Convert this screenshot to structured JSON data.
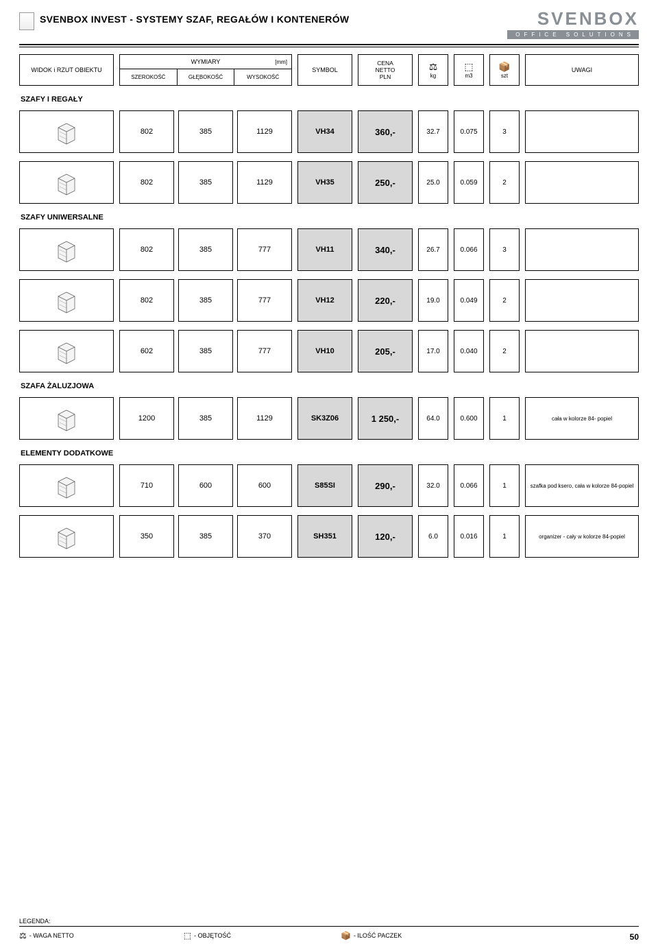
{
  "header": {
    "page_title": "SVENBOX INVEST - SYSTEMY SZAF, REGAŁÓW I KONTENERÓW",
    "brand_main": "SVENBOX",
    "brand_sub": "OFFICE SOLUTIONS"
  },
  "columns": {
    "view": "WIDOK i RZUT OBIEKTU",
    "dims_label": "WYMIARY",
    "dims_unit": "[mm]",
    "szer": "SZEROKOŚĆ",
    "gleb": "GŁĘBOKOŚĆ",
    "wys": "WYSOKOŚĆ",
    "symbol": "SYMBOL",
    "price": "CENA\nNETTO\nPLN",
    "kg": "kg",
    "m3": "m3",
    "szt": "szt",
    "remarks": "UWAGI",
    "icon_weight": "⚖",
    "icon_volume": "⬚",
    "icon_pack": "📦"
  },
  "sections": [
    {
      "label": "SZAFY I REGAŁY",
      "rows": [
        {
          "w": "802",
          "d": "385",
          "h": "1129",
          "symbol": "VH34",
          "price": "360,-",
          "kg": "32.7",
          "m3": "0.075",
          "szt": "3",
          "note": ""
        },
        {
          "w": "802",
          "d": "385",
          "h": "1129",
          "symbol": "VH35",
          "price": "250,-",
          "kg": "25.0",
          "m3": "0.059",
          "szt": "2",
          "note": ""
        }
      ]
    },
    {
      "label": "SZAFY UNIWERSALNE",
      "rows": [
        {
          "w": "802",
          "d": "385",
          "h": "777",
          "symbol": "VH11",
          "price": "340,-",
          "kg": "26.7",
          "m3": "0.066",
          "szt": "3",
          "note": ""
        },
        {
          "w": "802",
          "d": "385",
          "h": "777",
          "symbol": "VH12",
          "price": "220,-",
          "kg": "19.0",
          "m3": "0.049",
          "szt": "2",
          "note": ""
        },
        {
          "w": "602",
          "d": "385",
          "h": "777",
          "symbol": "VH10",
          "price": "205,-",
          "kg": "17.0",
          "m3": "0.040",
          "szt": "2",
          "note": ""
        }
      ]
    },
    {
      "label": "SZAFA ŻALUZJOWA",
      "rows": [
        {
          "w": "1200",
          "d": "385",
          "h": "1129",
          "symbol": "SK3Z06",
          "price": "1 250,-",
          "kg": "64.0",
          "m3": "0.600",
          "szt": "1",
          "note": "cała w kolorze 84- popiel"
        }
      ]
    },
    {
      "label": "ELEMENTY DODATKOWE",
      "rows": [
        {
          "w": "710",
          "d": "600",
          "h": "600",
          "symbol": "S85SI",
          "price": "290,-",
          "kg": "32.0",
          "m3": "0.066",
          "szt": "1",
          "note": "szafka pod ksero, cała w kolorze 84-popiel"
        },
        {
          "w": "350",
          "d": "385",
          "h": "370",
          "symbol": "SH351",
          "price": "120,-",
          "kg": "6.0",
          "m3": "0.016",
          "szt": "1",
          "note": "organizer - cały w kolorze 84-popiel"
        }
      ]
    }
  ],
  "legend": {
    "title": "LEGENDA:",
    "weight": "- WAGA NETTO",
    "volume": "- OBJĘTOŚĆ",
    "pack": "- ILOŚĆ PACZEK"
  },
  "page_number": "50",
  "colors": {
    "shade": "#d8d8d8",
    "brand": "#8a8f96"
  }
}
